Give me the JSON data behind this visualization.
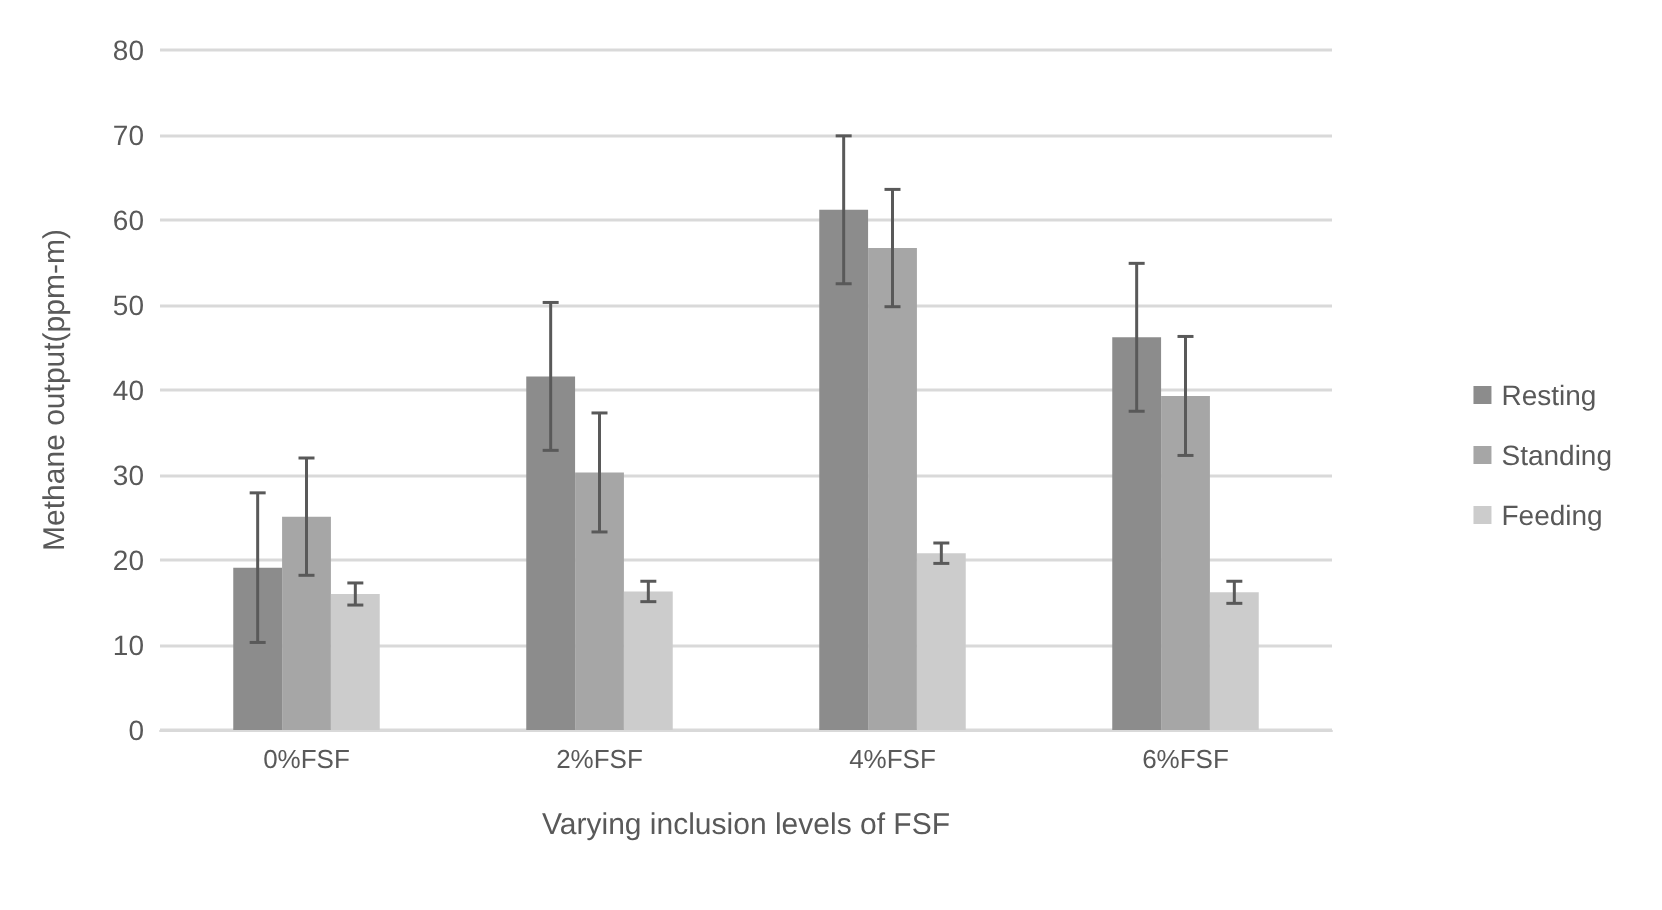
{
  "chart_data": {
    "type": "bar",
    "xlabel": "Varying inclusion levels of FSF",
    "ylabel": "Methane output(ppm-m)",
    "categories": [
      "0%FSF",
      "2%FSF",
      "4%FSF",
      "6%FSF"
    ],
    "series": [
      {
        "name": "Resting",
        "color": "#8c8c8c",
        "values": [
          19.1,
          41.6,
          61.2,
          46.2
        ],
        "errors": [
          8.8,
          8.7,
          8.7,
          8.7
        ]
      },
      {
        "name": "Standing",
        "color": "#a6a6a6",
        "values": [
          25.1,
          30.3,
          56.7,
          39.3
        ],
        "errors": [
          6.9,
          7.0,
          6.9,
          7.0
        ]
      },
      {
        "name": "Feeding",
        "color": "#cccccc",
        "values": [
          16.0,
          16.3,
          20.8,
          16.2
        ],
        "errors": [
          1.3,
          1.2,
          1.2,
          1.3
        ]
      }
    ],
    "ylim": [
      0,
      80
    ],
    "yticks": [
      0,
      10,
      20,
      30,
      40,
      50,
      60,
      70,
      80
    ],
    "grid": "y",
    "legend": "right"
  }
}
